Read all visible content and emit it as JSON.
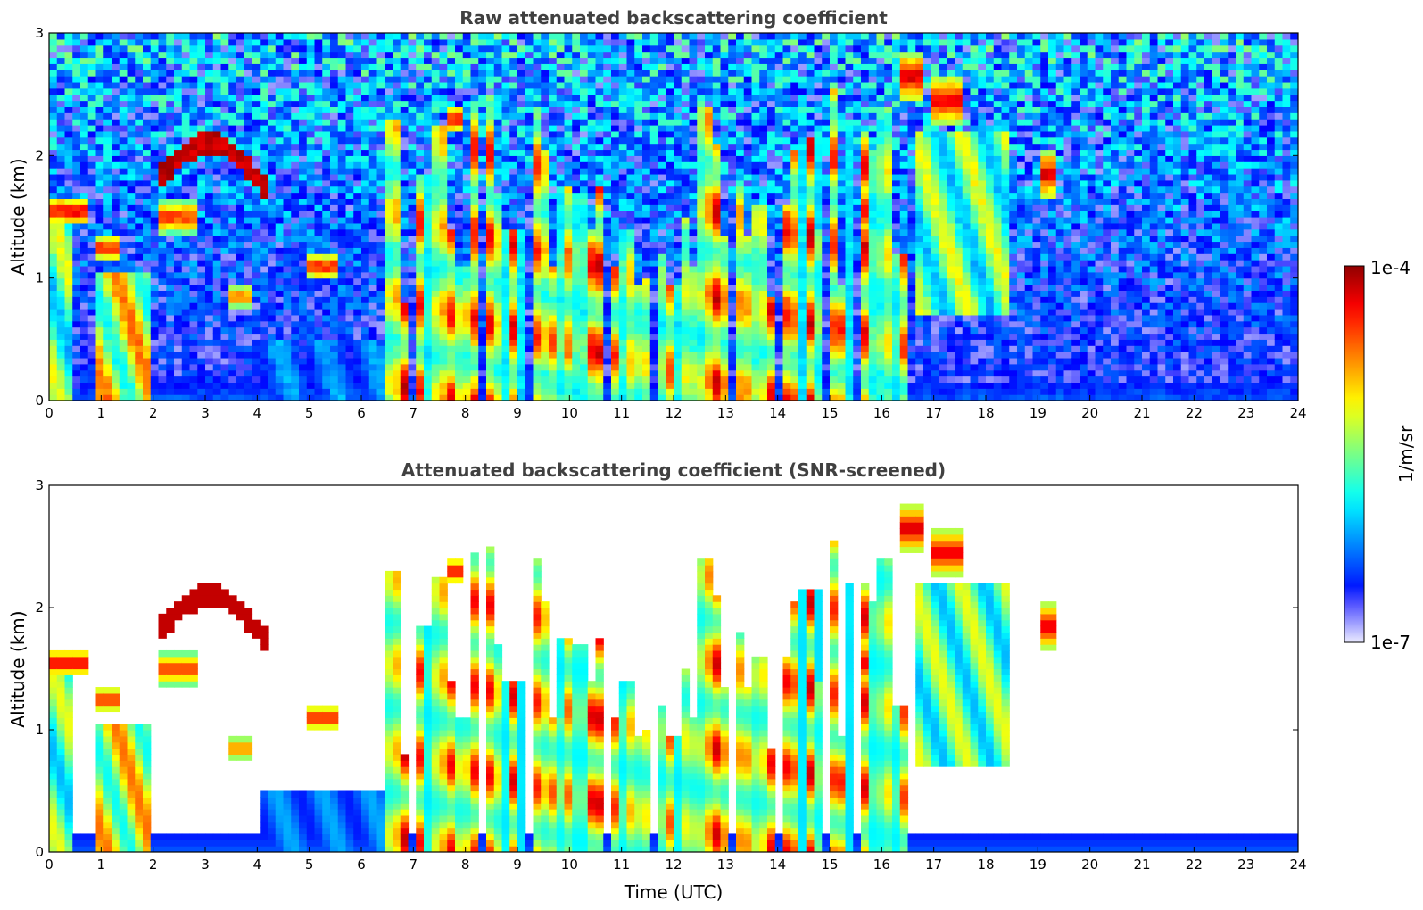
{
  "chart_data": [
    {
      "type": "heatmap",
      "title": "Raw attenuated backscattering coefficient",
      "xlabel": "",
      "ylabel": "Altitude (km)",
      "xlim": [
        0,
        24
      ],
      "ylim": [
        0,
        3
      ],
      "xticks": [
        "0",
        "1",
        "2",
        "3",
        "4",
        "5",
        "6",
        "7",
        "8",
        "9",
        "10",
        "11",
        "12",
        "13",
        "14",
        "15",
        "16",
        "17",
        "18",
        "19",
        "20",
        "21",
        "22",
        "23",
        "24"
      ],
      "yticks": [
        "0",
        "1",
        "2",
        "3"
      ],
      "screened": false,
      "features": [
        {
          "kind": "layer",
          "t0": 0.0,
          "t1": 0.7,
          "z": 1.55,
          "dz": 0.08,
          "level": 0.97
        },
        {
          "kind": "layer",
          "t0": 0.85,
          "t1": 1.3,
          "z": 1.25,
          "dz": 0.08,
          "level": 0.9
        },
        {
          "kind": "block",
          "t0": 0.9,
          "t1": 2.0,
          "z0": 0.0,
          "z1": 1.05,
          "level": 0.78
        },
        {
          "kind": "block",
          "t0": 0.0,
          "t1": 0.5,
          "z0": 0.0,
          "z1": 1.5,
          "level": 0.62
        },
        {
          "kind": "arc",
          "t0": 2.1,
          "t1": 4.2,
          "zs": 1.8,
          "ze": 1.7,
          "peak": 2.1,
          "level": 0.95
        },
        {
          "kind": "layer",
          "t0": 2.1,
          "t1": 2.9,
          "z": 1.5,
          "dz": 0.1,
          "level": 0.88
        },
        {
          "kind": "layer",
          "t0": 3.5,
          "t1": 3.9,
          "z": 0.85,
          "dz": 0.08,
          "level": 0.8
        },
        {
          "kind": "layer",
          "t0": 4.9,
          "t1": 5.5,
          "z": 1.1,
          "dz": 0.08,
          "level": 0.92
        },
        {
          "kind": "block",
          "t0": 4.1,
          "t1": 6.6,
          "z0": 0.0,
          "z1": 0.5,
          "level": 0.3
        },
        {
          "kind": "layer",
          "t0": 7.7,
          "t1": 7.9,
          "z": 2.3,
          "dz": 0.08,
          "level": 0.95
        },
        {
          "kind": "layer",
          "t0": 16.4,
          "t1": 16.8,
          "z": 2.65,
          "dz": 0.15,
          "level": 0.97
        },
        {
          "kind": "layer",
          "t0": 16.9,
          "t1": 17.6,
          "z": 2.45,
          "dz": 0.15,
          "level": 0.95
        },
        {
          "kind": "block",
          "t0": 16.6,
          "t1": 18.5,
          "z0": 0.7,
          "z1": 2.2,
          "level": 0.62
        },
        {
          "kind": "layer",
          "t0": 19.0,
          "t1": 19.4,
          "z": 1.85,
          "dz": 0.15,
          "level": 0.95
        },
        {
          "kind": "layer",
          "t0": 15.6,
          "t1": 15.8,
          "z": 1.55,
          "dz": 0.15,
          "level": 0.95
        },
        {
          "kind": "plumes",
          "t0": 6.6,
          "t1": 16.5,
          "count": 45,
          "zmax": 2.6,
          "level": 0.85
        }
      ]
    },
    {
      "type": "heatmap",
      "title": "Attenuated backscattering coefficient (SNR-screened)",
      "xlabel": "Time (UTC)",
      "ylabel": "Altitude (km)",
      "xlim": [
        0,
        24
      ],
      "ylim": [
        0,
        3
      ],
      "xticks": [
        "0",
        "1",
        "2",
        "3",
        "4",
        "5",
        "6",
        "7",
        "8",
        "9",
        "10",
        "11",
        "12",
        "13",
        "14",
        "15",
        "16",
        "17",
        "18",
        "19",
        "20",
        "21",
        "22",
        "23",
        "24"
      ],
      "yticks": [
        "0",
        "1",
        "2",
        "3"
      ],
      "screened": true
    }
  ],
  "colorbar": {
    "label": "1/m/sr",
    "max_label": "1e-4",
    "min_label": "1e-7",
    "scale": "log",
    "colormap": "jet"
  },
  "colors": {
    "background": "#ffffff",
    "title": "#404040"
  }
}
